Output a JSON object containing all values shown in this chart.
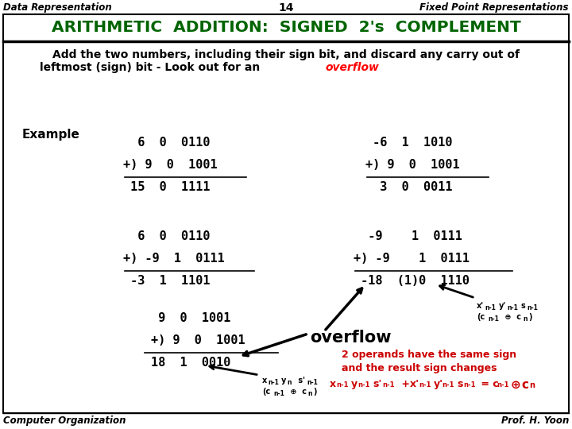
{
  "title_left": "Data Representation",
  "title_center": "14",
  "title_right": "Fixed Point Representations",
  "header": "ARITHMETIC  ADDITION:  SIGNED  2's  COMPLEMENT",
  "desc_line1": "Add the two numbers, including their sign bit, and discard any carry out of",
  "desc_line2": "leftmost (sign) bit - Look out for an ",
  "desc_overflow": "overflow",
  "footer_left": "Computer Organization",
  "footer_right": "Prof. H. Yoon",
  "bg_color": "#ffffff",
  "header_color": "#006400",
  "border_color": "#000000"
}
